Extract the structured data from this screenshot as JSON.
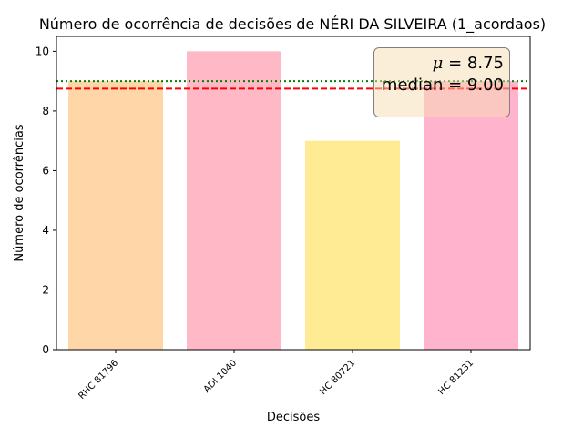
{
  "chart_data": {
    "type": "bar",
    "title": "Número de ocorrência de decisões de NÉRI DA SILVEIRA (1_acordaos)",
    "xlabel": "Decisões",
    "ylabel": "Número de ocorrências",
    "categories": [
      "RHC 81796",
      "ADI 1040",
      "HC 80721",
      "HC 81231"
    ],
    "values": [
      9,
      10,
      7,
      9
    ],
    "bar_colors": [
      "#ffd6a8",
      "#ffb8c6",
      "#ffeb94",
      "#ffb3cc"
    ],
    "ylim": [
      0,
      10.5
    ],
    "yticks": [
      0,
      2,
      4,
      6,
      8,
      10
    ],
    "grid": false,
    "reference_lines": [
      {
        "value": 8.75,
        "style": "dashed",
        "color": "#ff0000"
      },
      {
        "value": 9.0,
        "style": "dotted",
        "color": "#008000"
      }
    ],
    "stats_box": {
      "placement": "top-right",
      "mean_symbol": "μ",
      "mean_text": "= 8.75",
      "median_text": "median = 9.00"
    }
  }
}
